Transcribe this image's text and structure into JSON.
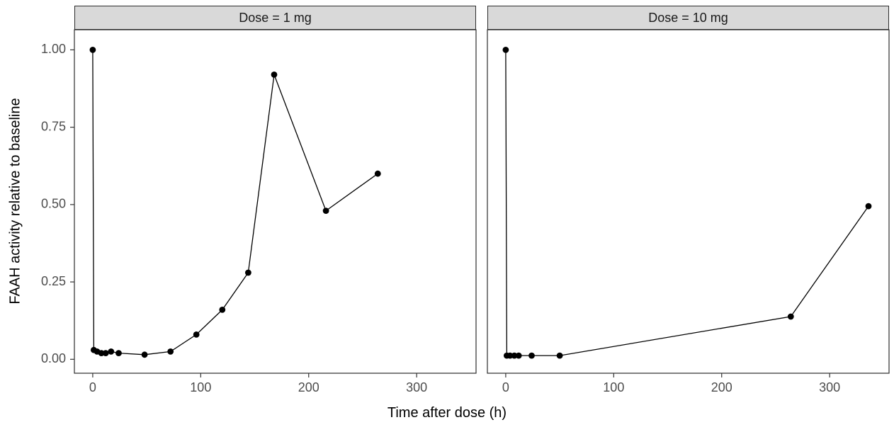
{
  "chart_data": {
    "type": "line",
    "title": "",
    "xlabel": "Time after dose (h)",
    "ylabel": "FAAH activity relative to baseline",
    "x_ticks": [
      0,
      100,
      200,
      300
    ],
    "x_tick_labels": [
      "0",
      "100",
      "200",
      "300"
    ],
    "y_ticks": [
      0.0,
      0.25,
      0.5,
      0.75,
      1.0
    ],
    "y_tick_labels": [
      "0.00",
      "0.25",
      "0.50",
      "0.75",
      "1.00"
    ],
    "xlim": [
      -17,
      355
    ],
    "ylim": [
      -0.045,
      1.065
    ],
    "legend": "none",
    "grid": "off",
    "facets": [
      {
        "label": "Dose = 1 mg",
        "series": {
          "name": "FAAH activity",
          "x": [
            0,
            1,
            4,
            8,
            12,
            17,
            24,
            48,
            72,
            96,
            120,
            144,
            168,
            216,
            264
          ],
          "y": [
            1.0,
            0.03,
            0.025,
            0.02,
            0.02,
            0.025,
            0.02,
            0.015,
            0.025,
            0.08,
            0.16,
            0.28,
            0.92,
            0.48,
            0.6
          ]
        }
      },
      {
        "label": "Dose = 10 mg",
        "series": {
          "name": "FAAH activity",
          "x": [
            0,
            1,
            4,
            8,
            12,
            24,
            50,
            264,
            336
          ],
          "y": [
            1.0,
            0.012,
            0.012,
            0.012,
            0.012,
            0.012,
            0.012,
            0.138,
            0.495
          ]
        }
      }
    ],
    "point_color": "#000000",
    "line_color": "#000000",
    "strip_bg": "#d9d9d9",
    "panel_border": "#2b2b2b",
    "tick_color": "#333333",
    "tick_label_color": "#4d4d4d"
  }
}
